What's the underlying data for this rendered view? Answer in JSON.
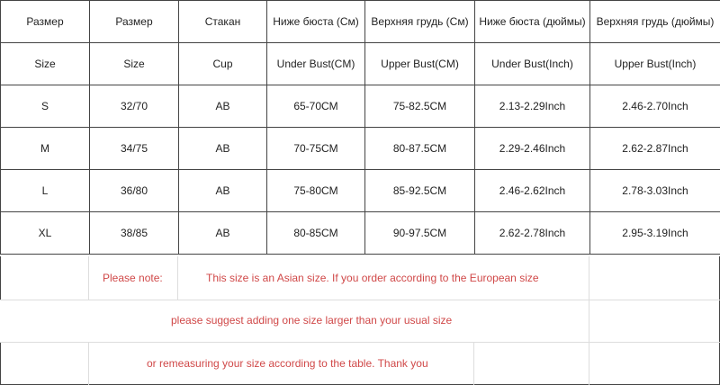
{
  "header_ru": [
    "Размер",
    "Размер",
    "Стакан",
    "Ниже бюста (См)",
    "Верхняя грудь (См)",
    "Ниже бюста (дюймы)",
    "Верхняя грудь (дюймы)"
  ],
  "header_en": [
    "Size",
    "Size",
    "Cup",
    "Under Bust(CM)",
    "Upper Bust(CM)",
    "Under Bust(Inch)",
    "Upper Bust(Inch)"
  ],
  "rows": [
    [
      "S",
      "32/70",
      "AB",
      "65-70CM",
      "75-82.5CM",
      "2.13-2.29Inch",
      "2.46-2.70Inch"
    ],
    [
      "M",
      "34/75",
      "AB",
      "70-75CM",
      "80-87.5CM",
      "2.29-2.46Inch",
      "2.62-2.87Inch"
    ],
    [
      "L",
      "36/80",
      "AB",
      "75-80CM",
      "85-92.5CM",
      "2.46-2.62Inch",
      "2.78-3.03Inch"
    ],
    [
      "XL",
      "38/85",
      "AB",
      "80-85CM",
      "90-97.5CM",
      "2.62-2.78Inch",
      "2.95-3.19Inch"
    ]
  ],
  "notes": {
    "label": "Please note:",
    "line1": "This size is an Asian size. If you order according to the European size",
    "line2": "please suggest adding one size larger than your usual size",
    "line3": "or remeasuring your size according to the table. Thank you",
    "color": "#d04848"
  }
}
